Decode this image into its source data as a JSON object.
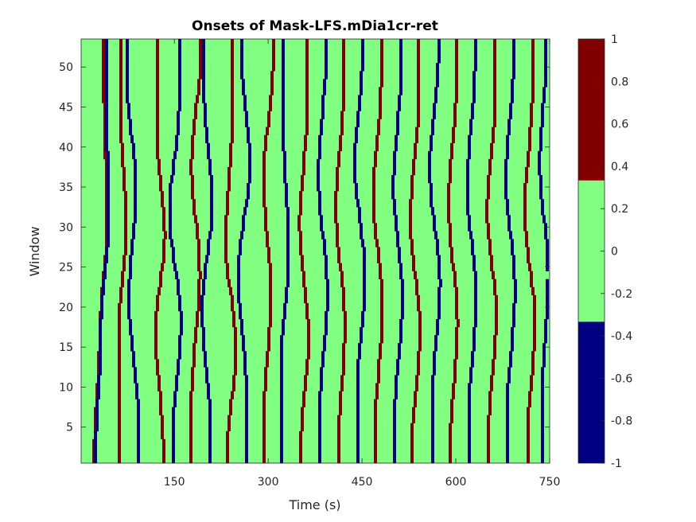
{
  "chart_data": {
    "type": "heatmap",
    "title": "Onsets of Mask-LFS.mDia1cr-ret",
    "xlabel": "Time (s)",
    "ylabel": "Window",
    "x_range": [
      1,
      750
    ],
    "y_range": [
      1,
      53
    ],
    "x_ticks": [
      150,
      300,
      450,
      600,
      750
    ],
    "x_tick_labels": [
      "150",
      "300",
      "450",
      "600",
      "750"
    ],
    "y_ticks": [
      5,
      10,
      15,
      20,
      25,
      30,
      35,
      40,
      45,
      50
    ],
    "y_tick_labels": [
      "5",
      "10",
      "15",
      "20",
      "25",
      "30",
      "35",
      "40",
      "45",
      "50"
    ],
    "colorbar": {
      "range": [
        -1,
        1
      ],
      "tick_labels": [
        "1",
        "0.8",
        "0.6",
        "0.4",
        "0.2",
        "0",
        "-0.2",
        "-0.4",
        "-0.6",
        "-0.8",
        "-1"
      ],
      "ticks": [
        1,
        0.8,
        0.6,
        0.4,
        0.2,
        0,
        -0.2,
        -0.4,
        -0.6,
        -0.8,
        -1
      ],
      "bands": [
        {
          "from": -1,
          "to": -0.333,
          "value": -1,
          "color": "#000080"
        },
        {
          "from": -0.333,
          "to": 0.333,
          "value": 0,
          "color": "#80ff80"
        },
        {
          "from": 0.333,
          "to": 1,
          "value": 1,
          "color": "#800000"
        }
      ]
    },
    "grid": false,
    "colors": {
      "positive": "#800000",
      "zero": "#80ff80",
      "negative": "#000080"
    },
    "note": "Cell grid: windows 1–53 by time bins; value 0 dominates, with scattered +1 (dark red) and -1 (dark blue) onset cells forming vertical drifting streaks.",
    "onset_tracks": [
      {
        "value": 1,
        "points": [
          [
            20,
            3
          ],
          [
            28,
            16
          ],
          [
            40,
            30
          ],
          [
            35,
            48
          ]
        ]
      },
      {
        "value": -1,
        "points": [
          [
            22,
            2
          ],
          [
            30,
            17
          ],
          [
            42,
            31
          ],
          [
            38,
            50
          ]
        ]
      },
      {
        "value": 1,
        "points": [
          [
            60,
            18
          ],
          [
            70,
            30
          ],
          [
            62,
            44
          ]
        ]
      },
      {
        "value": -1,
        "points": [
          [
            90,
            6
          ],
          [
            75,
            21
          ],
          [
            86,
            35
          ],
          [
            72,
            48
          ]
        ]
      },
      {
        "value": 1,
        "points": [
          [
            130,
            2
          ],
          [
            118,
            17
          ],
          [
            132,
            29
          ],
          [
            120,
            42
          ]
        ]
      },
      {
        "value": -1,
        "points": [
          [
            145,
            4
          ],
          [
            158,
            18
          ],
          [
            140,
            32
          ],
          [
            155,
            45
          ]
        ]
      },
      {
        "value": 1,
        "points": [
          [
            175,
            8
          ],
          [
            188,
            24
          ],
          [
            175,
            38
          ],
          [
            190,
            52
          ]
        ]
      },
      {
        "value": -1,
        "points": [
          [
            205,
            5
          ],
          [
            192,
            20
          ],
          [
            208,
            33
          ],
          [
            195,
            47
          ]
        ]
      },
      {
        "value": 1,
        "points": [
          [
            232,
            2
          ],
          [
            246,
            15
          ],
          [
            230,
            28
          ],
          [
            240,
            44
          ]
        ]
      },
      {
        "value": -1,
        "points": [
          [
            262,
            10
          ],
          [
            250,
            24
          ],
          [
            268,
            38
          ],
          [
            255,
            51
          ]
        ]
      },
      {
        "value": 1,
        "points": [
          [
            290,
            5
          ],
          [
            302,
            22
          ],
          [
            290,
            36
          ],
          [
            305,
            50
          ]
        ]
      },
      {
        "value": -1,
        "points": [
          [
            318,
            12
          ],
          [
            330,
            27
          ],
          [
            322,
            42
          ]
        ]
      },
      {
        "value": 1,
        "points": [
          [
            350,
            3
          ],
          [
            362,
            16
          ],
          [
            348,
            30
          ],
          [
            360,
            45
          ]
        ]
      },
      {
        "value": -1,
        "points": [
          [
            380,
            7
          ],
          [
            392,
            22
          ],
          [
            378,
            36
          ],
          [
            390,
            52
          ]
        ]
      },
      {
        "value": 1,
        "points": [
          [
            410,
            2
          ],
          [
            420,
            18
          ],
          [
            406,
            32
          ],
          [
            418,
            47
          ]
        ]
      },
      {
        "value": -1,
        "points": [
          [
            440,
            9
          ],
          [
            452,
            24
          ],
          [
            436,
            38
          ],
          [
            448,
            51
          ]
        ]
      },
      {
        "value": 1,
        "points": [
          [
            468,
            4
          ],
          [
            480,
            20
          ],
          [
            466,
            34
          ],
          [
            478,
            48
          ]
        ]
      },
      {
        "value": -1,
        "points": [
          [
            500,
            6
          ],
          [
            512,
            21
          ],
          [
            498,
            35
          ],
          [
            510,
            50
          ]
        ]
      },
      {
        "value": 1,
        "points": [
          [
            528,
            3
          ],
          [
            540,
            17
          ],
          [
            525,
            31
          ],
          [
            538,
            46
          ]
        ]
      },
      {
        "value": -1,
        "points": [
          [
            560,
            8
          ],
          [
            572,
            23
          ],
          [
            556,
            37
          ],
          [
            570,
            52
          ]
        ]
      },
      {
        "value": 1,
        "points": [
          [
            588,
            2
          ],
          [
            600,
            18
          ],
          [
            586,
            33
          ],
          [
            598,
            47
          ]
        ]
      },
      {
        "value": -1,
        "points": [
          [
            618,
            6
          ],
          [
            630,
            21
          ],
          [
            616,
            35
          ],
          [
            628,
            50
          ]
        ]
      },
      {
        "value": 1,
        "points": [
          [
            650,
            4
          ],
          [
            662,
            19
          ],
          [
            648,
            32
          ],
          [
            660,
            46
          ]
        ]
      },
      {
        "value": -1,
        "points": [
          [
            680,
            7
          ],
          [
            692,
            22
          ],
          [
            678,
            36
          ],
          [
            690,
            51
          ]
        ]
      },
      {
        "value": 1,
        "points": [
          [
            712,
            3
          ],
          [
            724,
            18
          ],
          [
            708,
            32
          ],
          [
            720,
            47
          ]
        ]
      },
      {
        "value": -1,
        "points": [
          [
            735,
            8
          ],
          [
            745,
            24
          ],
          [
            732,
            38
          ],
          [
            742,
            52
          ]
        ]
      }
    ]
  }
}
